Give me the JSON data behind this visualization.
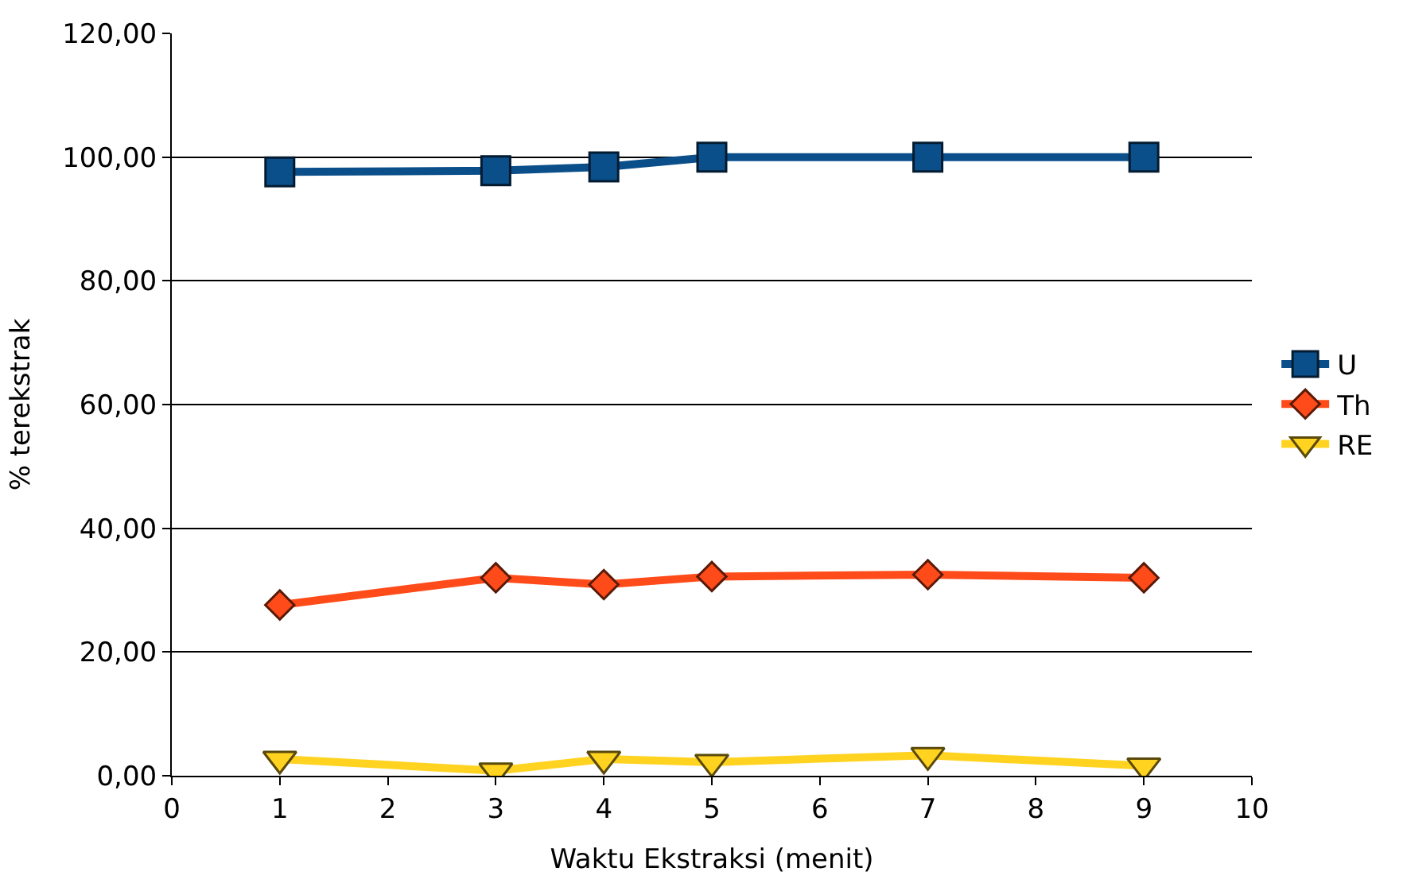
{
  "chart_data": {
    "type": "line",
    "xlabel": "Waktu Ekstraksi (menit)",
    "ylabel": "% terekstrak",
    "x": [
      1,
      3,
      4,
      5,
      7,
      9
    ],
    "series": [
      {
        "name": "U",
        "color": "#0b4f8a",
        "marker": "square",
        "values": [
          97.6,
          97.8,
          98.4,
          100.0,
          100.0,
          100.0
        ]
      },
      {
        "name": "Th",
        "color": "#ff4b19",
        "marker": "diamond",
        "values": [
          27.6,
          32.0,
          30.9,
          32.2,
          32.5,
          32.0
        ]
      },
      {
        "name": "RE",
        "color": "#ffd320",
        "marker": "triangle",
        "values": [
          2.7,
          0.8,
          2.7,
          2.2,
          3.3,
          1.6
        ]
      }
    ],
    "xlim": [
      0,
      10
    ],
    "xticks": [
      0,
      1,
      2,
      3,
      4,
      5,
      6,
      7,
      8,
      9,
      10
    ],
    "ylim": [
      0,
      120
    ],
    "yticks": [
      {
        "value": 0,
        "label": "0,00"
      },
      {
        "value": 20,
        "label": "20,00"
      },
      {
        "value": 40,
        "label": "40,00"
      },
      {
        "value": 60,
        "label": "60,00"
      },
      {
        "value": 80,
        "label": "80,00"
      },
      {
        "value": 100,
        "label": "100,00"
      },
      {
        "value": 120,
        "label": "120,00"
      }
    ],
    "grid": "y",
    "legend": "right"
  }
}
